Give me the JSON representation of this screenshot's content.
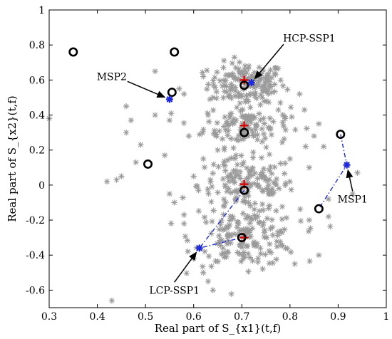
{
  "chart_data": {
    "type": "scatter",
    "xlabel": "Real part of S_{x1}(t,f)",
    "ylabel": "Real part of S_{x2}(t,f)",
    "xlim": [
      0.3,
      1.0
    ],
    "ylim": [
      -0.7,
      1.0
    ],
    "xticks": [
      "0.3",
      "0.4",
      "0.5",
      "0.6",
      "0.7",
      "0.8",
      "0.9",
      "1"
    ],
    "yticks": [
      "-0.6",
      "-0.4",
      "-0.2",
      "0",
      "0.2",
      "0.4",
      "0.6",
      "0.8",
      "1"
    ],
    "colors": {
      "star_points": "#9a9a9a",
      "plus_markers": "#e00000",
      "blue_markers": "#1f2bd6",
      "circles": "#000000",
      "dash_lines": "#1f2bd6"
    },
    "scatter_clusters": [
      {
        "center": [
          0.71,
          0.58
        ],
        "count": 150,
        "spread": [
          0.04,
          0.06
        ]
      },
      {
        "center": [
          0.71,
          0.34
        ],
        "count": 120,
        "spread": [
          0.045,
          0.06
        ]
      },
      {
        "center": [
          0.71,
          0.0
        ],
        "count": 150,
        "spread": [
          0.05,
          0.08
        ]
      },
      {
        "center": [
          0.71,
          -0.3
        ],
        "count": 160,
        "spread": [
          0.055,
          0.08
        ]
      }
    ],
    "scatter_outliers": [
      [
        0.42,
        0.02
      ],
      [
        0.44,
        0.03
      ],
      [
        0.45,
        0.05
      ],
      [
        0.46,
        0.45
      ],
      [
        0.47,
        0.37
      ],
      [
        0.46,
        0.3
      ],
      [
        0.48,
        0.13
      ],
      [
        0.49,
        0.23
      ],
      [
        0.52,
        0.4
      ],
      [
        0.52,
        0.65
      ],
      [
        0.54,
        0.17
      ],
      [
        0.55,
        0.37
      ],
      [
        0.55,
        -0.05
      ],
      [
        0.56,
        -0.1
      ],
      [
        0.58,
        -0.17
      ],
      [
        0.58,
        -0.22
      ],
      [
        0.6,
        -0.42
      ],
      [
        0.62,
        -0.5
      ],
      [
        0.63,
        -0.55
      ],
      [
        0.57,
        0.55
      ],
      [
        0.58,
        0.52
      ],
      [
        0.59,
        0.28
      ],
      [
        0.6,
        0.05
      ],
      [
        0.61,
        -0.03
      ],
      [
        0.62,
        0.62
      ],
      [
        0.64,
        -0.6
      ],
      [
        0.43,
        -0.66
      ],
      [
        0.3,
        0.38
      ],
      [
        0.94,
        0.07
      ],
      [
        0.93,
        -0.05
      ],
      [
        0.88,
        -0.08
      ],
      [
        0.87,
        0.22
      ],
      [
        0.86,
        0.35
      ],
      [
        0.85,
        0.28
      ],
      [
        0.84,
        -0.2
      ],
      [
        0.82,
        0.52
      ],
      [
        0.83,
        0.43
      ],
      [
        0.86,
        -0.4
      ],
      [
        0.88,
        -0.18
      ],
      [
        0.84,
        0.1
      ],
      [
        0.81,
        -0.45
      ],
      [
        0.8,
        0.15
      ],
      [
        0.62,
        0.15
      ],
      [
        0.63,
        0.4
      ],
      [
        0.64,
        0.5
      ],
      [
        0.65,
        0.2
      ],
      [
        0.78,
        0.47
      ],
      [
        0.79,
        0.38
      ]
    ],
    "circles": [
      [
        0.35,
        0.76
      ],
      [
        0.56,
        0.76
      ],
      [
        0.555,
        0.53
      ],
      [
        0.505,
        0.12
      ],
      [
        0.705,
        0.57
      ],
      [
        0.705,
        0.3
      ],
      [
        0.705,
        -0.03
      ],
      [
        0.7,
        -0.3
      ],
      [
        0.905,
        0.29
      ],
      [
        0.86,
        -0.135
      ]
    ],
    "plus_markers": [
      [
        0.705,
        0.6
      ],
      [
        0.705,
        0.34
      ],
      [
        0.705,
        0.005
      ],
      [
        0.705,
        -0.3
      ]
    ],
    "blue_markers": [
      [
        0.72,
        0.585
      ],
      [
        0.55,
        0.49
      ],
      [
        0.918,
        0.115
      ],
      [
        0.612,
        -0.36
      ]
    ],
    "dash_lines": [
      [
        [
          0.905,
          0.29
        ],
        [
          0.918,
          0.115
        ],
        [
          0.86,
          -0.135
        ]
      ],
      [
        [
          0.705,
          -0.03
        ],
        [
          0.612,
          -0.36
        ],
        [
          0.7,
          -0.3
        ]
      ]
    ],
    "annotations": [
      {
        "text": "HCP-SSP1",
        "point": [
          0.72,
          0.585
        ],
        "text_at": [
          0.84,
          0.82
        ]
      },
      {
        "text": "MSP2",
        "point": [
          0.55,
          0.49
        ],
        "text_at": [
          0.43,
          0.6
        ]
      },
      {
        "text": "MSP1",
        "point": [
          0.918,
          0.115
        ],
        "text_at": [
          0.93,
          -0.1
        ]
      },
      {
        "text": "LCP-SSP1",
        "point": [
          0.612,
          -0.36
        ],
        "text_at": [
          0.56,
          -0.62
        ]
      }
    ]
  }
}
